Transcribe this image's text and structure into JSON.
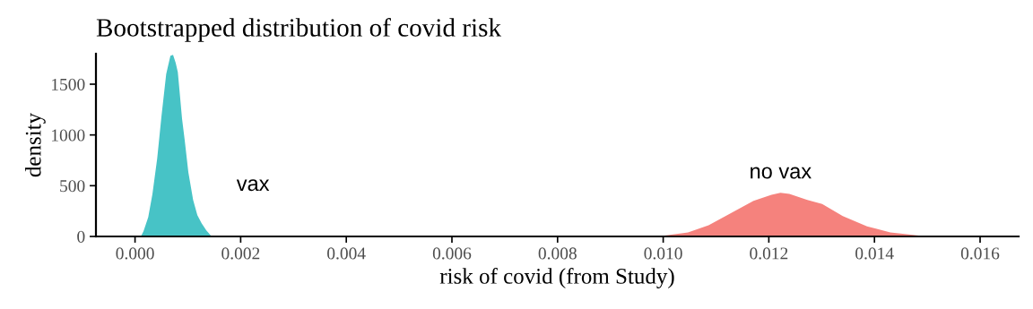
{
  "chart_data": {
    "type": "area",
    "title": "Bootstrapped distribution of covid risk",
    "xlabel": "risk of covid (from Study)",
    "ylabel": "density",
    "series": [
      {
        "name": "vax",
        "color": "#47c3c6",
        "x": [
          0.00011,
          0.00016,
          0.00025,
          0.00033,
          0.00042,
          0.0005,
          0.00059,
          0.00067,
          0.00072,
          0.00077,
          0.00081,
          0.00084,
          0.00089,
          0.00094,
          0.00101,
          0.0011,
          0.00118,
          0.00126,
          0.00135,
          0.00145
        ],
        "values": [
          0,
          50,
          190,
          420,
          770,
          1180,
          1600,
          1780,
          1790,
          1710,
          1620,
          1450,
          1160,
          950,
          630,
          360,
          210,
          130,
          60,
          0
        ]
      },
      {
        "name": "no vax",
        "color": "#f5827d",
        "x": [
          0.00989,
          0.01047,
          0.01086,
          0.01125,
          0.01171,
          0.01205,
          0.01222,
          0.01239,
          0.01273,
          0.01301,
          0.0134,
          0.01386,
          0.0143,
          0.01498
        ],
        "values": [
          0,
          40,
          110,
          220,
          350,
          410,
          430,
          420,
          360,
          320,
          200,
          100,
          40,
          0
        ]
      }
    ],
    "xlim": [
      -0.00074,
      0.01673
    ],
    "ylim": [
      0,
      1800
    ],
    "xticks": [
      {
        "value": 0,
        "label": "0.000"
      },
      {
        "value": 0.002,
        "label": "0.002"
      },
      {
        "value": 0.004,
        "label": "0.004"
      },
      {
        "value": 0.006,
        "label": "0.006"
      },
      {
        "value": 0.008,
        "label": "0.008"
      },
      {
        "value": 0.01,
        "label": "0.010"
      },
      {
        "value": 0.012,
        "label": "0.012"
      },
      {
        "value": 0.014,
        "label": "0.014"
      },
      {
        "value": 0.016,
        "label": "0.016"
      }
    ],
    "yticks": [
      0,
      500,
      1000,
      1500
    ],
    "grid": false,
    "legend": false
  }
}
